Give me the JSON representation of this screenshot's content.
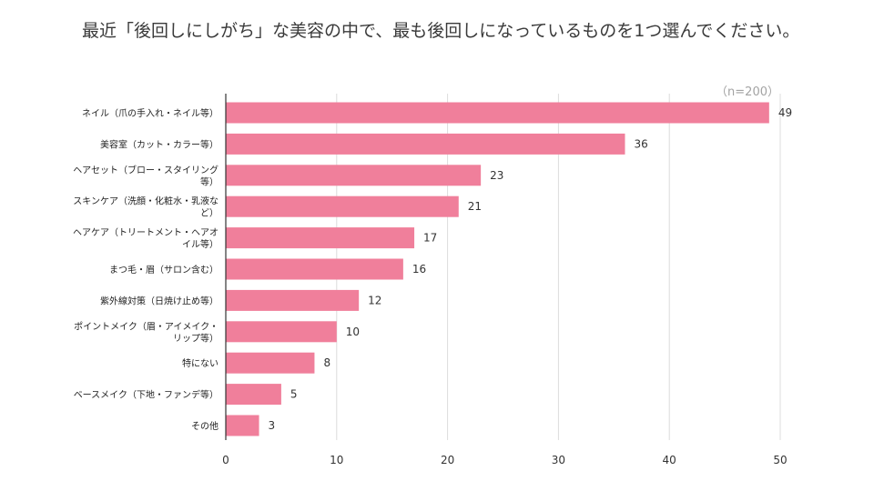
{
  "title": "最近「後回しにしがち」な美容の中で、最も後回しになっているものを1つ選んでください。",
  "note": "（n=200）",
  "chart_data": {
    "type": "bar",
    "orientation": "horizontal",
    "title": "最近「後回しにしがち」な美容の中で、最も後回しになっているものを1つ選んでください。",
    "note": "（n=200）",
    "categories": [
      "ネイル（爪の手入れ・ネイル等）",
      "美容室（カット・カラー等）",
      "ヘアセット（ブロー・スタイリング等）",
      "スキンケア（洗顔・化粧水・乳液など）",
      "ヘアケア（トリートメント・ヘアオイル等）",
      "まつ毛・眉（サロン含む）",
      "紫外線対策（日焼け止め等）",
      "ポイントメイク（眉・アイメイク・リップ等）",
      "特にない",
      "ベースメイク（下地・ファンデ等）",
      "その他"
    ],
    "values": [
      49,
      36,
      23,
      21,
      17,
      16,
      12,
      10,
      8,
      5,
      3
    ],
    "xlim": [
      0,
      50
    ],
    "xticks": [
      0,
      10,
      20,
      30,
      40,
      50
    ],
    "grid": true,
    "bar_color": "#f07f9b",
    "grid_color": "#dcdcdc",
    "axis_color": "#333333"
  }
}
